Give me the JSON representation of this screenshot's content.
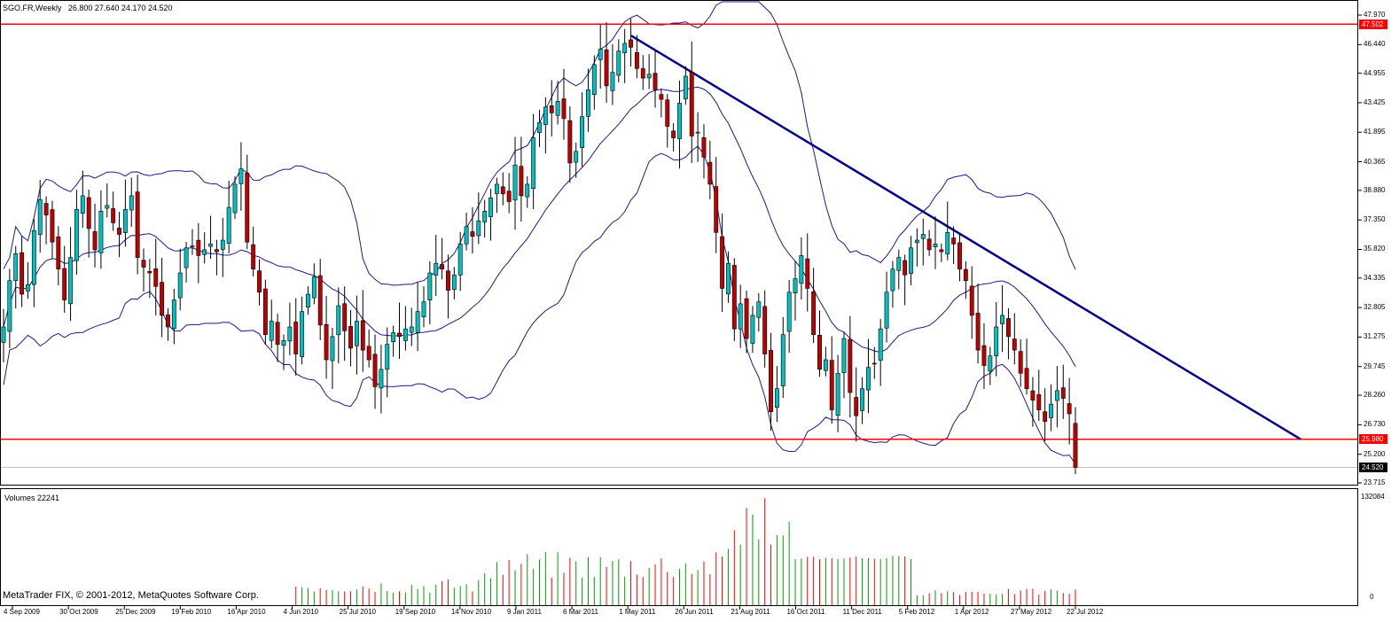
{
  "header": {
    "symbol_timeframe": "SGO.FR,Weekly",
    "ohlc": "26.800 27.640 24.170 24.520"
  },
  "volume_panel": {
    "title": "Volumes 22241",
    "max_label": "132084",
    "min_label": "0"
  },
  "footer": {
    "copyright": "MetaTrader FIX, © 2001-2012, MetaQuotes Software Corp."
  },
  "price_axis": {
    "ticks": [
      "47.970",
      "46.440",
      "44.955",
      "43.425",
      "41.895",
      "40.365",
      "38.880",
      "37.350",
      "35.820",
      "34.335",
      "32.805",
      "31.275",
      "29.745",
      "28.260",
      "26.730",
      "25.200",
      "23.715"
    ],
    "tags": [
      {
        "label": "47.502",
        "color": "#ff0000",
        "text_color": "#ffffff",
        "kind": "resistance"
      },
      {
        "label": "25.980",
        "color": "#ff0000",
        "text_color": "#ffffff",
        "kind": "support"
      },
      {
        "label": "24.520",
        "color": "#000000",
        "text_color": "#ffffff",
        "kind": "last"
      }
    ]
  },
  "time_axis": {
    "ticks": [
      "4 Sep 2009",
      "30 Oct 2009",
      "25 Dec 2009",
      "19 Feb 2010",
      "16 Apr 2010",
      "4 Jun 2010",
      "25 Jul 2010",
      "19 Sep 2010",
      "14 Nov 2010",
      "9 Jan 2011",
      "6 Mar 2011",
      "1 May 2011",
      "26 Jun 2011",
      "21 Aug 2011",
      "16 Oct 2011",
      "11 Dec 2011",
      "5 Feb 2012",
      "1 Apr 2012",
      "27 May 2012",
      "22 Jul 2012"
    ]
  },
  "colors": {
    "bull": "#00c0c0",
    "bear": "#c00000",
    "wick": "#000000",
    "band": "#1a1a8c",
    "trendline": "#00008b",
    "level": "#ff0000",
    "vol_up": "#00a000",
    "vol_down": "#ff0000"
  },
  "chart_data": {
    "type": "candlestick",
    "timeframe": "Weekly",
    "symbol": "SGO.FR",
    "ylim": [
      23.715,
      47.97
    ],
    "horizontal_levels": [
      47.502,
      25.98
    ],
    "trendline": {
      "from": [
        "26 Apr 2011",
        46.9
      ],
      "to": [
        "6 Nov 2012",
        25.98
      ]
    },
    "last": {
      "open": 26.8,
      "high": 27.64,
      "low": 24.17,
      "close": 24.52
    },
    "closes": [
      31.8,
      34.2,
      35.6,
      33.5,
      34.0,
      36.8,
      38.4,
      37.6,
      36.2,
      34.8,
      33.2,
      35.4,
      37.9,
      38.6,
      36.9,
      35.8,
      37.8,
      38.1,
      37.2,
      36.6,
      37.9,
      38.6,
      35.4,
      34.9,
      34.6,
      33.9,
      32.4,
      31.8,
      33.2,
      34.6,
      35.9,
      36.0,
      35.5,
      35.8,
      36.1,
      35.7,
      36.3,
      38.0,
      39.2,
      40.0,
      36.2,
      34.8,
      33.6,
      31.4,
      32.1,
      30.9,
      31.1,
      31.8,
      30.4,
      32.6,
      33.5,
      34.4,
      31.9,
      30.1,
      31.3,
      32.9,
      31.6,
      30.7,
      32.1,
      30.6,
      30.1,
      28.7,
      29.6,
      30.9,
      31.5,
      31.3,
      31.7,
      31.8,
      32.6,
      33.1,
      34.6,
      35.1,
      34.8,
      33.7,
      34.5,
      36.1,
      37.0,
      36.5,
      37.3,
      37.8,
      38.5,
      39.2,
      38.7,
      38.3,
      40.2,
      38.6,
      39.2,
      41.6,
      42.4,
      43.2,
      42.9,
      43.5,
      42.6,
      40.3,
      40.9,
      42.7,
      44.1,
      45.4,
      46.2,
      44.3,
      45.0,
      46.1,
      46.5,
      46.3,
      45.2,
      44.7,
      44.9,
      44.1,
      43.6,
      42.2,
      41.6,
      43.4,
      44.8,
      41.7,
      41.9,
      40.6,
      39.2,
      36.7,
      33.8,
      35.1,
      31.7,
      33.0,
      31.2,
      32.4,
      33.1,
      30.4,
      27.4,
      28.6,
      31.4,
      33.6,
      34.3,
      35.5,
      33.8,
      31.4,
      29.6,
      30.1,
      27.5,
      29.4,
      31.2,
      28.4,
      27.2,
      28.6,
      29.7,
      29.9,
      31.7,
      33.6,
      34.8,
      35.4,
      34.5,
      35.9,
      36.3,
      36.6,
      35.8,
      36.1,
      35.7,
      36.7,
      36.1,
      34.8,
      34.2,
      32.4,
      30.6,
      29.8,
      30.3,
      31.8,
      32.4,
      31.3,
      30.6,
      29.4,
      28.6,
      28.0,
      27.5,
      26.9,
      27.8,
      28.5,
      28.1,
      27.3,
      24.52
    ],
    "volume_scale_max": 132084
  }
}
